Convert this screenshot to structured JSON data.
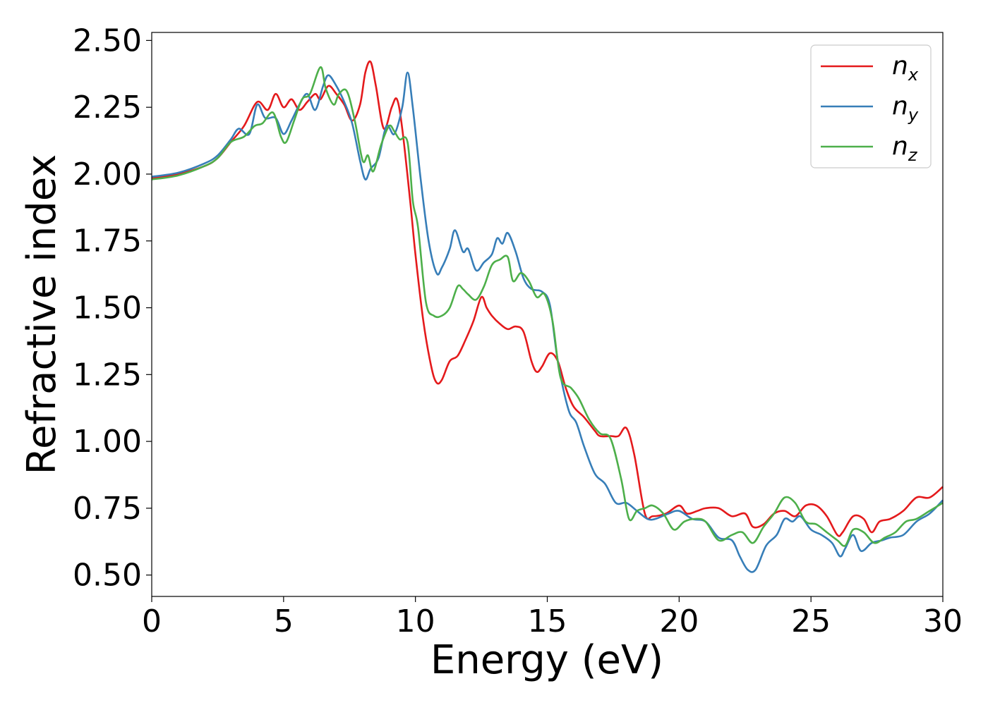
{
  "chart_data": {
    "type": "line",
    "title": "",
    "xlabel": "Energy (eV)",
    "ylabel": "Refractive index",
    "xlim": [
      0,
      30
    ],
    "ylim": [
      0.42,
      2.53
    ],
    "xticks": [
      0,
      5,
      10,
      15,
      20,
      25,
      30
    ],
    "xtick_labels": [
      "0",
      "5",
      "10",
      "15",
      "20",
      "25",
      "30"
    ],
    "yticks": [
      0.5,
      0.75,
      1.0,
      1.25,
      1.5,
      1.75,
      2.0,
      2.25,
      2.5
    ],
    "ytick_labels": [
      "0.50",
      "0.75",
      "1.00",
      "1.25",
      "1.50",
      "1.75",
      "2.00",
      "2.25",
      "2.50"
    ],
    "grid": false,
    "legend": "top-right",
    "series": [
      {
        "name": "n_x",
        "label_base": "n",
        "label_sub": "x",
        "color": "#e41a1c",
        "x": [
          0,
          1,
          2,
          2.5,
          3,
          3.5,
          4,
          4.4,
          4.7,
          5.0,
          5.3,
          5.6,
          5.9,
          6.2,
          6.4,
          6.7,
          7.0,
          7.3,
          7.6,
          7.9,
          8.1,
          8.3,
          8.5,
          8.8,
          9.1,
          9.3,
          9.5,
          9.8,
          10.0,
          10.3,
          10.6,
          10.8,
          11.0,
          11.3,
          11.6,
          11.9,
          12.2,
          12.5,
          12.7,
          12.9,
          13.2,
          13.5,
          13.8,
          14.1,
          14.4,
          14.6,
          14.8,
          15.1,
          15.4,
          15.7,
          16.0,
          16.4,
          16.8,
          17.0,
          17.4,
          17.7,
          18.0,
          18.3,
          18.7,
          19.0,
          19.5,
          20.0,
          20.3,
          20.7,
          21.0,
          21.5,
          22.0,
          22.5,
          22.8,
          23.2,
          23.6,
          24.0,
          24.4,
          24.8,
          25.2,
          25.6,
          26.0,
          26.2,
          26.6,
          27.0,
          27.3,
          27.6,
          28.0,
          28.5,
          29.0,
          29.5,
          30.0
        ],
        "y": [
          1.985,
          2.0,
          2.03,
          2.06,
          2.12,
          2.18,
          2.27,
          2.24,
          2.3,
          2.25,
          2.28,
          2.24,
          2.27,
          2.3,
          2.28,
          2.33,
          2.3,
          2.26,
          2.2,
          2.26,
          2.38,
          2.42,
          2.33,
          2.17,
          2.25,
          2.28,
          2.17,
          1.9,
          1.7,
          1.45,
          1.28,
          1.22,
          1.23,
          1.3,
          1.32,
          1.38,
          1.45,
          1.54,
          1.5,
          1.47,
          1.44,
          1.42,
          1.43,
          1.41,
          1.3,
          1.26,
          1.28,
          1.33,
          1.3,
          1.2,
          1.13,
          1.09,
          1.04,
          1.02,
          1.02,
          1.02,
          1.05,
          0.95,
          0.73,
          0.72,
          0.73,
          0.76,
          0.73,
          0.74,
          0.75,
          0.75,
          0.72,
          0.73,
          0.68,
          0.69,
          0.73,
          0.74,
          0.72,
          0.76,
          0.76,
          0.72,
          0.65,
          0.66,
          0.72,
          0.71,
          0.66,
          0.7,
          0.71,
          0.74,
          0.79,
          0.79,
          0.83
        ]
      },
      {
        "name": "n_y",
        "label_base": "n",
        "label_sub": "y",
        "color": "#377eb8",
        "x": [
          0,
          1,
          2,
          2.5,
          3,
          3.3,
          3.7,
          4.0,
          4.3,
          4.7,
          5.0,
          5.3,
          5.6,
          5.9,
          6.2,
          6.5,
          6.7,
          7.0,
          7.3,
          7.6,
          7.9,
          8.1,
          8.3,
          8.6,
          8.9,
          9.2,
          9.5,
          9.7,
          9.9,
          10.2,
          10.5,
          10.8,
          11.0,
          11.3,
          11.5,
          11.8,
          12.0,
          12.3,
          12.6,
          12.9,
          13.1,
          13.3,
          13.5,
          13.8,
          14.1,
          14.4,
          14.8,
          15.1,
          15.4,
          15.8,
          16.1,
          16.4,
          16.8,
          17.2,
          17.6,
          18.0,
          18.4,
          18.8,
          19.1,
          19.6,
          20.0,
          20.5,
          21.0,
          21.5,
          22.0,
          22.3,
          22.6,
          22.9,
          23.3,
          23.7,
          24.0,
          24.3,
          24.6,
          25.0,
          25.4,
          25.8,
          26.1,
          26.3,
          26.6,
          26.9,
          27.3,
          27.7,
          28.0,
          28.5,
          29.0,
          29.5,
          30.0
        ],
        "y": [
          1.99,
          2.005,
          2.04,
          2.07,
          2.13,
          2.17,
          2.15,
          2.26,
          2.21,
          2.21,
          2.15,
          2.2,
          2.26,
          2.3,
          2.24,
          2.33,
          2.37,
          2.33,
          2.27,
          2.19,
          2.05,
          1.98,
          2.02,
          2.06,
          2.18,
          2.15,
          2.25,
          2.38,
          2.25,
          1.98,
          1.75,
          1.63,
          1.65,
          1.72,
          1.79,
          1.71,
          1.72,
          1.64,
          1.67,
          1.7,
          1.76,
          1.74,
          1.78,
          1.71,
          1.61,
          1.57,
          1.56,
          1.51,
          1.3,
          1.12,
          1.07,
          0.98,
          0.88,
          0.84,
          0.77,
          0.77,
          0.74,
          0.71,
          0.71,
          0.73,
          0.74,
          0.71,
          0.7,
          0.64,
          0.63,
          0.57,
          0.52,
          0.52,
          0.61,
          0.65,
          0.71,
          0.7,
          0.72,
          0.67,
          0.65,
          0.62,
          0.57,
          0.6,
          0.65,
          0.59,
          0.62,
          0.63,
          0.64,
          0.65,
          0.7,
          0.73,
          0.78
        ]
      },
      {
        "name": "n_z",
        "label_base": "n",
        "label_sub": "z",
        "color": "#4daf4a",
        "x": [
          0,
          1,
          2,
          2.5,
          3,
          3.5,
          3.9,
          4.2,
          4.6,
          4.9,
          5.1,
          5.4,
          5.7,
          6.0,
          6.4,
          6.6,
          6.9,
          7.1,
          7.4,
          7.7,
          8.0,
          8.2,
          8.4,
          8.7,
          9.0,
          9.2,
          9.4,
          9.7,
          9.9,
          10.1,
          10.4,
          10.7,
          11.0,
          11.3,
          11.6,
          11.8,
          12.0,
          12.3,
          12.6,
          12.9,
          13.2,
          13.5,
          13.7,
          14.0,
          14.3,
          14.6,
          14.9,
          15.2,
          15.5,
          15.9,
          16.2,
          16.6,
          17.0,
          17.4,
          17.8,
          18.1,
          18.4,
          18.7,
          19.0,
          19.4,
          19.8,
          20.2,
          20.6,
          21.0,
          21.5,
          22.0,
          22.4,
          22.8,
          23.2,
          23.6,
          24.0,
          24.4,
          24.8,
          25.2,
          25.6,
          26.0,
          26.3,
          26.6,
          27.0,
          27.4,
          27.8,
          28.2,
          28.6,
          29.0,
          29.5,
          30.0
        ],
        "y": [
          1.98,
          1.995,
          2.03,
          2.06,
          2.12,
          2.14,
          2.18,
          2.19,
          2.23,
          2.14,
          2.12,
          2.2,
          2.28,
          2.3,
          2.4,
          2.32,
          2.26,
          2.3,
          2.31,
          2.2,
          2.05,
          2.07,
          2.01,
          2.11,
          2.18,
          2.16,
          2.13,
          2.12,
          1.9,
          1.8,
          1.52,
          1.47,
          1.47,
          1.5,
          1.58,
          1.57,
          1.55,
          1.53,
          1.58,
          1.66,
          1.68,
          1.69,
          1.6,
          1.63,
          1.6,
          1.54,
          1.55,
          1.45,
          1.24,
          1.2,
          1.16,
          1.08,
          1.03,
          1.01,
          0.86,
          0.71,
          0.74,
          0.75,
          0.76,
          0.73,
          0.67,
          0.7,
          0.71,
          0.7,
          0.63,
          0.65,
          0.66,
          0.62,
          0.68,
          0.73,
          0.79,
          0.77,
          0.7,
          0.69,
          0.66,
          0.63,
          0.61,
          0.67,
          0.66,
          0.62,
          0.64,
          0.66,
          0.7,
          0.71,
          0.74,
          0.77
        ]
      }
    ]
  }
}
